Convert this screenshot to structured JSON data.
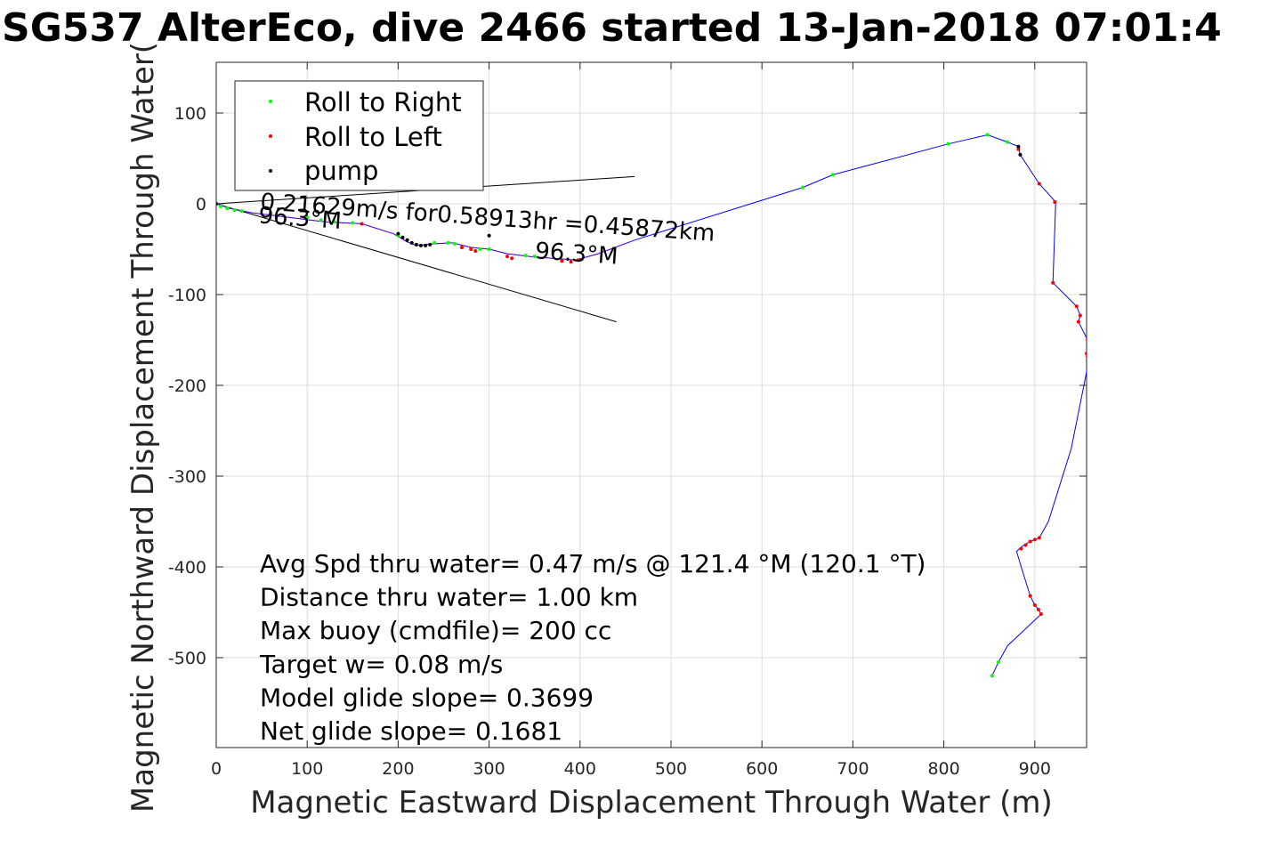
{
  "chart_data": {
    "type": "line",
    "title": "SG537 AlterEco, dive 2466 started 13-Jan-2018 07:01:4",
    "xlabel": "Magnetic Eastward Displacement Through Water (m)",
    "ylabel": "Magnetic Northward Displacement Through Water(",
    "xlim": [
      0,
      960
    ],
    "ylim": [
      -600,
      160
    ],
    "xticks": [
      0,
      100,
      200,
      300,
      400,
      500,
      600,
      700,
      800,
      900
    ],
    "yticks": [
      -500,
      -400,
      -300,
      -200,
      -100,
      0,
      100
    ],
    "grid": true,
    "legend_placement": "top-left",
    "colors": {
      "track": "#0000ff",
      "roll_right": "#00ff00",
      "roll_left": "#ff0000",
      "pump": "#000000",
      "reference_lines": "#000000"
    },
    "legend": [
      {
        "label": "Roll to Right",
        "color": "#00ff00"
      },
      {
        "label": "Roll to Left",
        "color": "#ff0000"
      },
      {
        "label": "pump",
        "color": "#000000"
      }
    ],
    "track": {
      "x": [
        0,
        15,
        40,
        80,
        120,
        160,
        195,
        210,
        220,
        240,
        260,
        280,
        300,
        320,
        345,
        370,
        395,
        420,
        460,
        645,
        678,
        805,
        848,
        870,
        882,
        884,
        905,
        923,
        920,
        946,
        950,
        948,
        958,
        957,
        958,
        957,
        960,
        940,
        915,
        905,
        900,
        895,
        888,
        883,
        880,
        885,
        895,
        900,
        904,
        907,
        870,
        860,
        853
      ],
      "y": [
        0,
        -5,
        -10,
        -15,
        -20,
        -22,
        -33,
        -42,
        -46,
        -44,
        -43,
        -48,
        -50,
        -55,
        -58,
        -60,
        -62,
        -55,
        -40,
        18,
        32,
        66,
        76,
        68,
        63,
        54,
        22,
        2,
        -87,
        -113,
        -123,
        -130,
        -150,
        -165,
        -168,
        -172,
        -170,
        -270,
        -350,
        -368,
        -370,
        -372,
        -376,
        -380,
        -383,
        -400,
        -432,
        -442,
        -447,
        -452,
        -487,
        -505,
        -520
      ]
    },
    "roll_right_points": {
      "x": [
        5,
        12,
        20,
        28,
        60,
        100,
        115,
        130,
        150,
        200,
        240,
        255,
        262,
        290,
        300,
        340,
        350,
        645,
        678,
        805,
        848,
        870,
        895,
        900,
        860,
        853
      ],
      "y": [
        -3,
        -5,
        -7,
        -8,
        -10,
        -15,
        -18,
        -20,
        -21,
        -35,
        -43,
        -43,
        -44,
        -50,
        -50,
        -57,
        -58,
        18,
        32,
        66,
        76,
        68,
        -432,
        -442,
        -505,
        -520
      ]
    },
    "roll_left_points": {
      "x": [
        160,
        270,
        280,
        285,
        320,
        325,
        380,
        390,
        398,
        882,
        905,
        922,
        920,
        946,
        950,
        948,
        958,
        957,
        958,
        885,
        890,
        895,
        900,
        905,
        895,
        900,
        904,
        907
      ],
      "y": [
        -22,
        -48,
        -50,
        -52,
        -58,
        -60,
        -63,
        -64,
        -62,
        60,
        22,
        2,
        -87,
        -113,
        -123,
        -130,
        -150,
        -165,
        -168,
        -380,
        -376,
        -372,
        -370,
        -368,
        -432,
        -442,
        -447,
        -452
      ]
    },
    "pump_points": {
      "x": [
        0,
        200,
        205,
        210,
        215,
        220,
        225,
        230,
        235,
        300,
        882,
        884
      ],
      "y": [
        0,
        -33,
        -37,
        -40,
        -43,
        -45,
        -46,
        -46,
        -45,
        -35,
        63,
        54
      ]
    },
    "reference_lines": [
      {
        "x": [
          0,
          460
        ],
        "y": [
          0,
          30
        ]
      },
      {
        "x": [
          0,
          440
        ],
        "y": [
          0,
          -130
        ]
      }
    ],
    "annotations": [
      {
        "text": "0.21629m/s for0.58913hr =0.45872km",
        "x": 48,
        "y": -6,
        "rotate": 4
      },
      {
        "text": "96.3°M",
        "x": 46,
        "y": -21,
        "rotate": 4
      },
      {
        "text": "96.3°M",
        "x": 350,
        "y": -60,
        "rotate": 4
      }
    ],
    "stats": [
      "Avg Spd thru water=  0.47 m/s @ 121.4 °M (120.1 °T)",
      "Distance thru water=  1.00 km",
      "Max buoy (cmdfile)= 200 cc",
      "Target w= 0.08 m/s",
      "Model glide slope= 0.3699",
      "Net glide slope= 0.1681"
    ]
  }
}
